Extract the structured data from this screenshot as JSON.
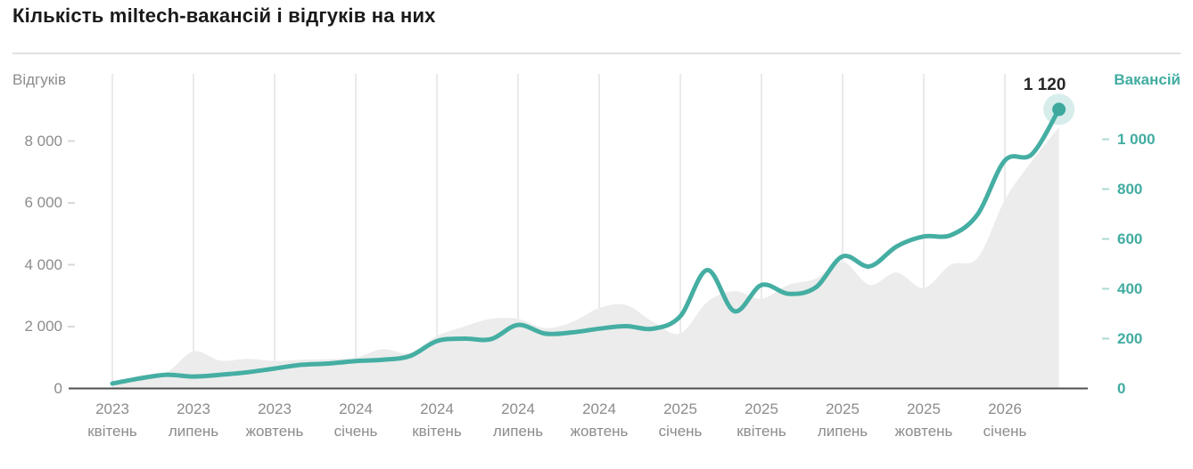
{
  "title": "Кількість miltech-вакансій і відгуків на них",
  "colors": {
    "accent_teal": "#45aea3",
    "teal_text": "#41aca1",
    "dot_teal": "#3da89d",
    "dot_halo": "rgba(69,174,163,0.22)",
    "area_gray": "#ececec",
    "grid_gray": "#e3e3e3",
    "left_dash_gray": "#d9d9d9",
    "right_dash_teal": "#abd9d4",
    "baseline_dark": "#4f4f4f",
    "text_gray": "#8c8c8c",
    "title_black": "#1a1a1a"
  },
  "chart_data": {
    "type": "area+line",
    "title": "Кількість miltech-вакансій і відгуків на них",
    "x_months": [
      "2023-04",
      "2023-05",
      "2023-06",
      "2023-07",
      "2023-08",
      "2023-09",
      "2023-10",
      "2023-11",
      "2023-12",
      "2024-01",
      "2024-02",
      "2024-03",
      "2024-04",
      "2024-05",
      "2024-06",
      "2024-07",
      "2024-08",
      "2024-09",
      "2024-10",
      "2024-11",
      "2024-12",
      "2025-01",
      "2025-02",
      "2025-03",
      "2025-04",
      "2025-05",
      "2025-06",
      "2025-07",
      "2025-08",
      "2025-09",
      "2025-10",
      "2025-11",
      "2025-12",
      "2026-01",
      "2026-02",
      "2026-03"
    ],
    "series": [
      {
        "name": "Відгуків",
        "type": "area",
        "axis": "left",
        "color": "#ececec",
        "values": [
          60,
          420,
          520,
          1200,
          900,
          960,
          890,
          930,
          950,
          1000,
          1270,
          1150,
          1700,
          2000,
          2250,
          2250,
          1950,
          2150,
          2600,
          2700,
          2150,
          1780,
          2800,
          3150,
          2900,
          3350,
          3550,
          4100,
          3350,
          3750,
          3250,
          4000,
          4230,
          6100,
          7350,
          8450
        ]
      },
      {
        "name": "Вакансій",
        "type": "line",
        "axis": "right",
        "color": "#45aea3",
        "values": [
          20,
          40,
          55,
          48,
          55,
          65,
          80,
          95,
          100,
          110,
          115,
          130,
          190,
          200,
          198,
          255,
          220,
          225,
          240,
          250,
          240,
          290,
          475,
          310,
          415,
          380,
          405,
          530,
          490,
          570,
          610,
          615,
          700,
          915,
          940,
          1120
        ]
      }
    ],
    "left_axis": {
      "title": "Відгуків",
      "range": [
        0,
        8000
      ],
      "tick_values": [
        8000,
        6000,
        4000,
        2000,
        0
      ],
      "tick_labels": [
        "8 000",
        "6 000",
        "4 000",
        "2 000",
        "0"
      ]
    },
    "right_axis": {
      "title": "Вакансій",
      "range": [
        0,
        1000
      ],
      "tick_values": [
        1000,
        800,
        600,
        400,
        200,
        0
      ],
      "tick_labels": [
        "1 000",
        "800",
        "600",
        "400",
        "200",
        "0"
      ]
    },
    "x_tick_labels": [
      {
        "year": "2023",
        "month": "квітень"
      },
      {
        "year": "2023",
        "month": "липень"
      },
      {
        "year": "2023",
        "month": "жовтень"
      },
      {
        "year": "2024",
        "month": "січень"
      },
      {
        "year": "2024",
        "month": "квітень"
      },
      {
        "year": "2024",
        "month": "липень"
      },
      {
        "year": "2024",
        "month": "жовтень"
      },
      {
        "year": "2025",
        "month": "січень"
      },
      {
        "year": "2025",
        "month": "квітень"
      },
      {
        "year": "2025",
        "month": "липень"
      },
      {
        "year": "2025",
        "month": "жовтень"
      },
      {
        "year": "2026",
        "month": "січень"
      }
    ],
    "end_label": {
      "text": "1 120",
      "value": 1120
    },
    "grid": "vertical-quarterly",
    "legend_position": "none"
  }
}
